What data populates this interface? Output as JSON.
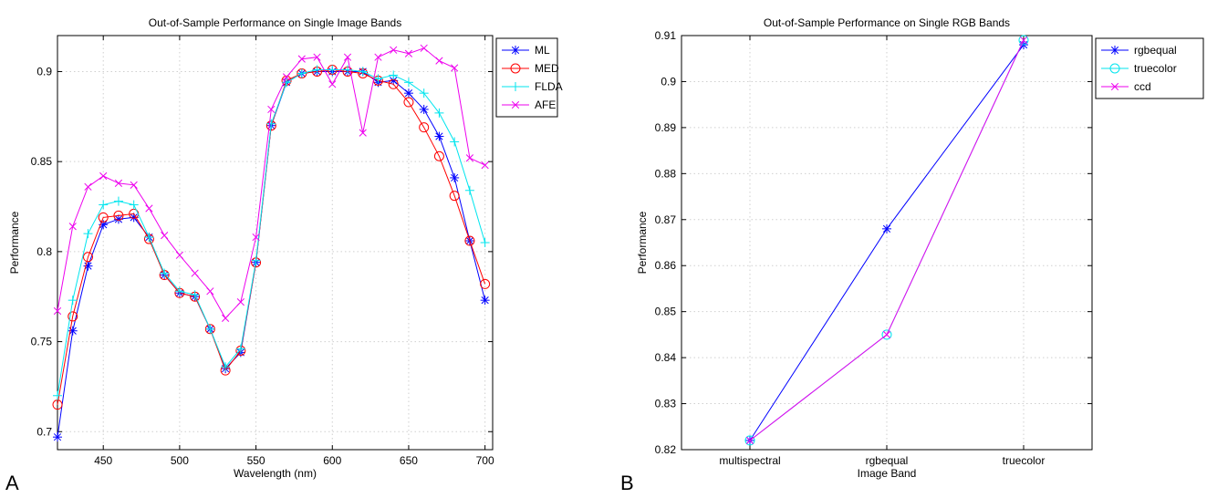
{
  "panel_labels": [
    "A",
    "B"
  ],
  "chart_data": [
    {
      "type": "line",
      "title": "Out-of-Sample Performance on Single Image Bands",
      "xlabel": "Wavelength (nm)",
      "ylabel": "Performance",
      "xlim": [
        420,
        705
      ],
      "ylim": [
        0.69,
        0.92
      ],
      "xticks": [
        450,
        500,
        550,
        600,
        650,
        700
      ],
      "yticks": [
        0.7,
        0.75,
        0.8,
        0.85,
        0.9
      ],
      "ytick_labels": [
        "0.7",
        "0.75",
        "0.8",
        "0.85",
        "0.9"
      ],
      "grid": true,
      "legend_position": "top-right",
      "x": [
        420,
        430,
        440,
        450,
        460,
        470,
        480,
        490,
        500,
        510,
        520,
        530,
        540,
        550,
        560,
        570,
        580,
        590,
        600,
        610,
        620,
        630,
        640,
        650,
        660,
        670,
        680,
        690,
        700
      ],
      "series": [
        {
          "name": "ML",
          "color": "#0000ff",
          "marker": "star",
          "values": [
            0.697,
            0.756,
            0.792,
            0.815,
            0.818,
            0.819,
            0.808,
            0.787,
            0.777,
            0.775,
            0.757,
            0.735,
            0.744,
            0.794,
            0.87,
            0.894,
            0.899,
            0.9,
            0.9,
            0.9,
            0.9,
            0.894,
            0.895,
            0.888,
            0.879,
            0.864,
            0.841,
            0.806,
            0.773
          ]
        },
        {
          "name": "MED",
          "color": "#ff0000",
          "marker": "circle",
          "values": [
            0.715,
            0.764,
            0.797,
            0.819,
            0.82,
            0.821,
            0.807,
            0.787,
            0.777,
            0.775,
            0.757,
            0.734,
            0.745,
            0.794,
            0.87,
            0.895,
            0.899,
            0.9,
            0.901,
            0.9,
            0.899,
            0.895,
            0.893,
            0.883,
            0.869,
            0.853,
            0.831,
            0.806,
            0.782
          ]
        },
        {
          "name": "FLDA",
          "color": "#00e5ee",
          "marker": "plus",
          "values": [
            0.72,
            0.773,
            0.81,
            0.826,
            0.828,
            0.826,
            0.808,
            0.788,
            0.778,
            0.776,
            0.757,
            0.736,
            0.746,
            0.795,
            0.871,
            0.894,
            0.899,
            0.901,
            0.901,
            0.901,
            0.9,
            0.896,
            0.898,
            0.894,
            0.888,
            0.877,
            0.861,
            0.834,
            0.805
          ]
        },
        {
          "name": "AFE",
          "color": "#ee00ee",
          "marker": "x",
          "values": [
            0.767,
            0.814,
            0.836,
            0.842,
            0.838,
            0.837,
            0.824,
            0.809,
            0.798,
            0.788,
            0.778,
            0.763,
            0.772,
            0.808,
            0.879,
            0.897,
            0.907,
            0.908,
            0.893,
            0.908,
            0.866,
            0.908,
            0.912,
            0.91,
            0.913,
            0.906,
            0.902,
            0.852,
            0.848
          ]
        }
      ]
    },
    {
      "type": "line",
      "title": "Out-of-Sample Performance on Single RGB Bands",
      "xlabel": "Image Band",
      "ylabel": "Performance",
      "categories": [
        "multispectral",
        "rgbequal",
        "truecolor"
      ],
      "ylim": [
        0.82,
        0.91
      ],
      "yticks": [
        0.82,
        0.83,
        0.84,
        0.85,
        0.86,
        0.87,
        0.88,
        0.89,
        0.9,
        0.91
      ],
      "ytick_labels": [
        "0.82",
        "0.83",
        "0.84",
        "0.85",
        "0.86",
        "0.87",
        "0.88",
        "0.89",
        "0.9",
        "0.91"
      ],
      "grid": true,
      "legend_position": "outside-top-right",
      "series": [
        {
          "name": "rgbequal",
          "color": "#0000ff",
          "marker": "star",
          "values": [
            0.822,
            0.868,
            0.908
          ]
        },
        {
          "name": "truecolor",
          "color": "#00e5ee",
          "marker": "circle",
          "values": [
            0.822,
            0.845,
            0.909
          ]
        },
        {
          "name": "ccd",
          "color": "#ee00ee",
          "marker": "x",
          "values": [
            0.822,
            0.845,
            0.909
          ]
        }
      ]
    }
  ]
}
